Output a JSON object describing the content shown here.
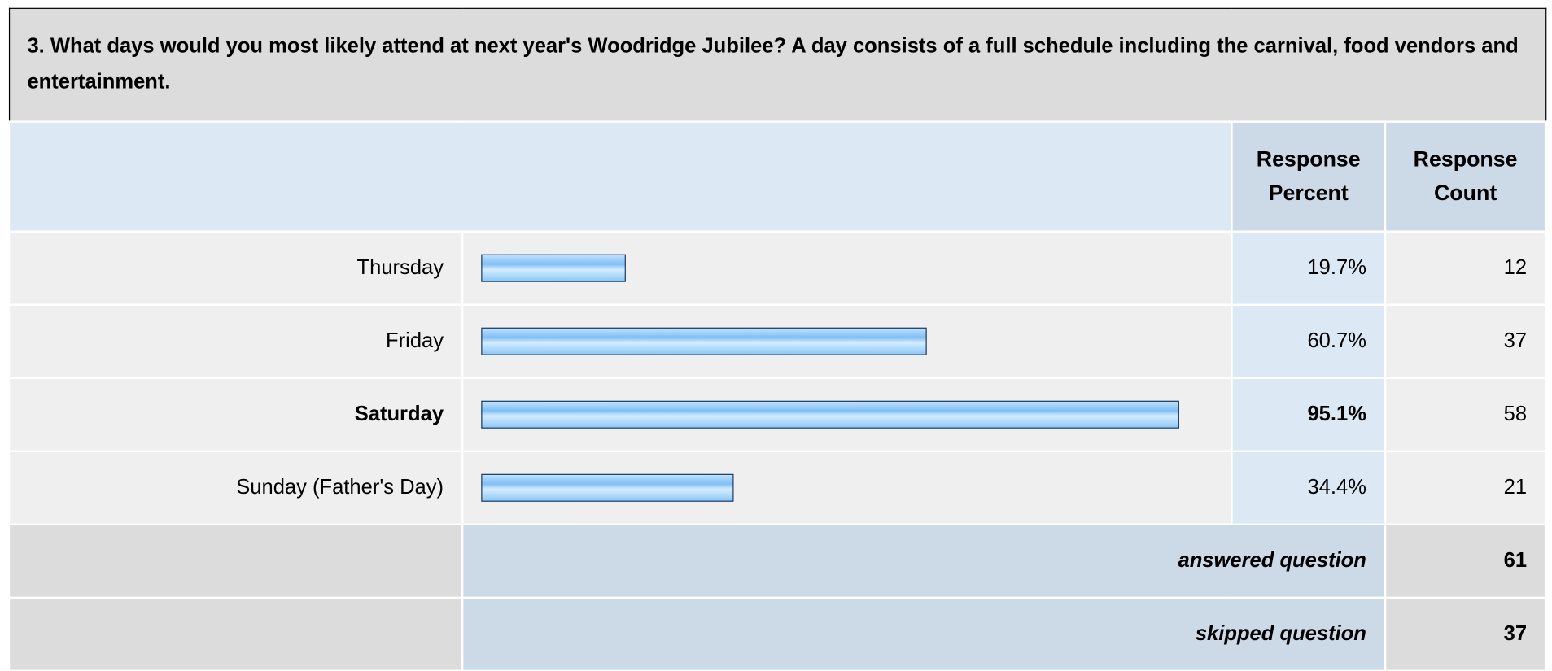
{
  "question": "3. What days would you most likely attend at next year's Woodridge Jubilee? A day consists of a full schedule including the carnival, food vendors and entertainment.",
  "header": {
    "percent": "Response Percent",
    "count": "Response Count"
  },
  "rows": [
    {
      "label": "Thursday",
      "percent": 19.7,
      "percent_label": "19.7%",
      "count": 12
    },
    {
      "label": "Friday",
      "percent": 60.7,
      "percent_label": "60.7%",
      "count": 37
    },
    {
      "label": "Saturday",
      "percent": 95.1,
      "percent_label": "95.1%",
      "count": 58,
      "emphasized": true
    },
    {
      "label": "Sunday (Father's Day)",
      "percent": 34.4,
      "percent_label": "34.4%",
      "count": 21
    }
  ],
  "summary": [
    {
      "label": "answered question",
      "count": 61
    },
    {
      "label": "skipped question",
      "count": 37
    }
  ]
}
